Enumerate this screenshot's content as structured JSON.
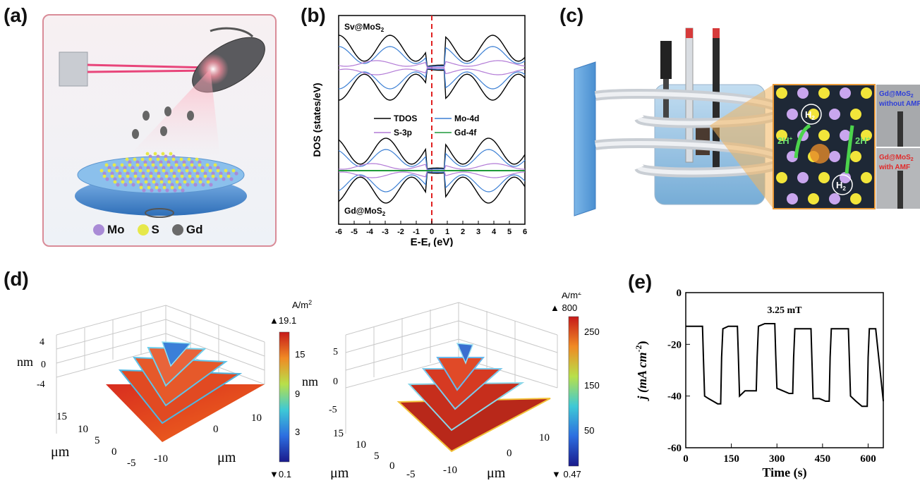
{
  "panels": {
    "a": {
      "label": "(a)",
      "legend": [
        {
          "name": "Mo",
          "color": "#a98bd6"
        },
        {
          "name": "S",
          "color": "#e6e84a"
        },
        {
          "name": "Gd",
          "color": "#6a6a6a"
        }
      ]
    },
    "b": {
      "label": "(b)",
      "top_label": "Sv@MoS",
      "top_sub": "2",
      "bottom_label": "Gd@MoS",
      "bottom_sub": "2",
      "ylabel": "DOS (states/eV)",
      "xlabel": "E-E",
      "xlabel_sub": "f",
      "xlabel_unit": " (eV)",
      "legend": [
        {
          "name": "TDOS",
          "color": "#000000"
        },
        {
          "name": "Mo-4d",
          "color": "#3b7fd4"
        },
        {
          "name": "S-3p",
          "color": "#b27ad6"
        },
        {
          "name": "Gd-4f",
          "color": "#1f9a3a"
        }
      ]
    },
    "c": {
      "label": "(c)",
      "reaction": {
        "h2_top": "H",
        "h2_bottom": "H",
        "h2_sub": "2",
        "proton_left": "2H",
        "proton_right": "2H",
        "plus": "+"
      },
      "insets": [
        {
          "line1": "Gd@MoS",
          "sub": "2",
          "line2": "without AMF",
          "color": "#2f3fd8"
        },
        {
          "line1": "Gd@MoS",
          "sub": "2",
          "line2": "with AMF",
          "color": "#e02a2a"
        }
      ]
    },
    "d": {
      "label": "(d)",
      "left": {
        "unit": "A/m",
        "unit_sup": "2",
        "max_label": "19.1",
        "min_label": "0.1",
        "colorbar_ticks": [
          "15",
          "9",
          "3"
        ],
        "z_axis_label": "nm",
        "z_ticks": [
          "4",
          "0",
          "-4"
        ],
        "y_ticks": [
          "15",
          "10",
          "5",
          "0",
          "-5"
        ],
        "y_axis_label": "μm",
        "x_ticks": [
          "-10",
          "0",
          "10"
        ],
        "x_axis_label": "μm"
      },
      "right": {
        "unit": "A/m",
        "unit_sup": "2",
        "max_label": "800",
        "min_label": "0.47",
        "colorbar_ticks": [
          "250",
          "150",
          "50"
        ],
        "z_axis_label": "nm",
        "z_ticks": [
          "5",
          "0",
          "-5"
        ],
        "y_ticks": [
          "15",
          "10",
          "5",
          "0",
          "-5"
        ],
        "y_axis_label": "μm",
        "x_ticks": [
          "-10",
          "0",
          "10"
        ],
        "x_axis_label": "μm"
      }
    },
    "e": {
      "label": "(e)"
    }
  },
  "chart_data": {
    "type": "line",
    "annotation": "3.25 mT",
    "xlabel": "Time (s)",
    "ylabel": "j (mA cm",
    "ylabel_sup": "-2",
    "ylabel_close": ")",
    "xlim": [
      0,
      650
    ],
    "ylim": [
      -60,
      0
    ],
    "xticks": [
      0,
      150,
      300,
      450,
      600
    ],
    "yticks": [
      0,
      -20,
      -40,
      -60
    ],
    "x": [
      0,
      55,
      58,
      62,
      75,
      90,
      105,
      115,
      118,
      122,
      140,
      160,
      170,
      173,
      177,
      195,
      215,
      232,
      235,
      239,
      260,
      280,
      293,
      296,
      300,
      320,
      340,
      352,
      355,
      359,
      380,
      400,
      412,
      415,
      419,
      440,
      460,
      472,
      475,
      479,
      500,
      520,
      535,
      538,
      542,
      560,
      580,
      597,
      600,
      604,
      625,
      650
    ],
    "y": [
      -13,
      -13,
      -25,
      -40,
      -41,
      -42,
      -43,
      -43,
      -25,
      -14,
      -13,
      -13,
      -13,
      -24,
      -40,
      -38,
      -38,
      -38,
      -25,
      -13,
      -12,
      -12,
      -12,
      -24,
      -37,
      -38,
      -39,
      -39,
      -25,
      -14,
      -14,
      -14,
      -14,
      -26,
      -41,
      -41,
      -42,
      -42,
      -25,
      -14,
      -14,
      -14,
      -14,
      -25,
      -40,
      -42,
      -44,
      -44,
      -25,
      -14,
      -14,
      -42
    ],
    "series": [
      {
        "values_ref": "y"
      }
    ],
    "line_color": "#000000"
  }
}
